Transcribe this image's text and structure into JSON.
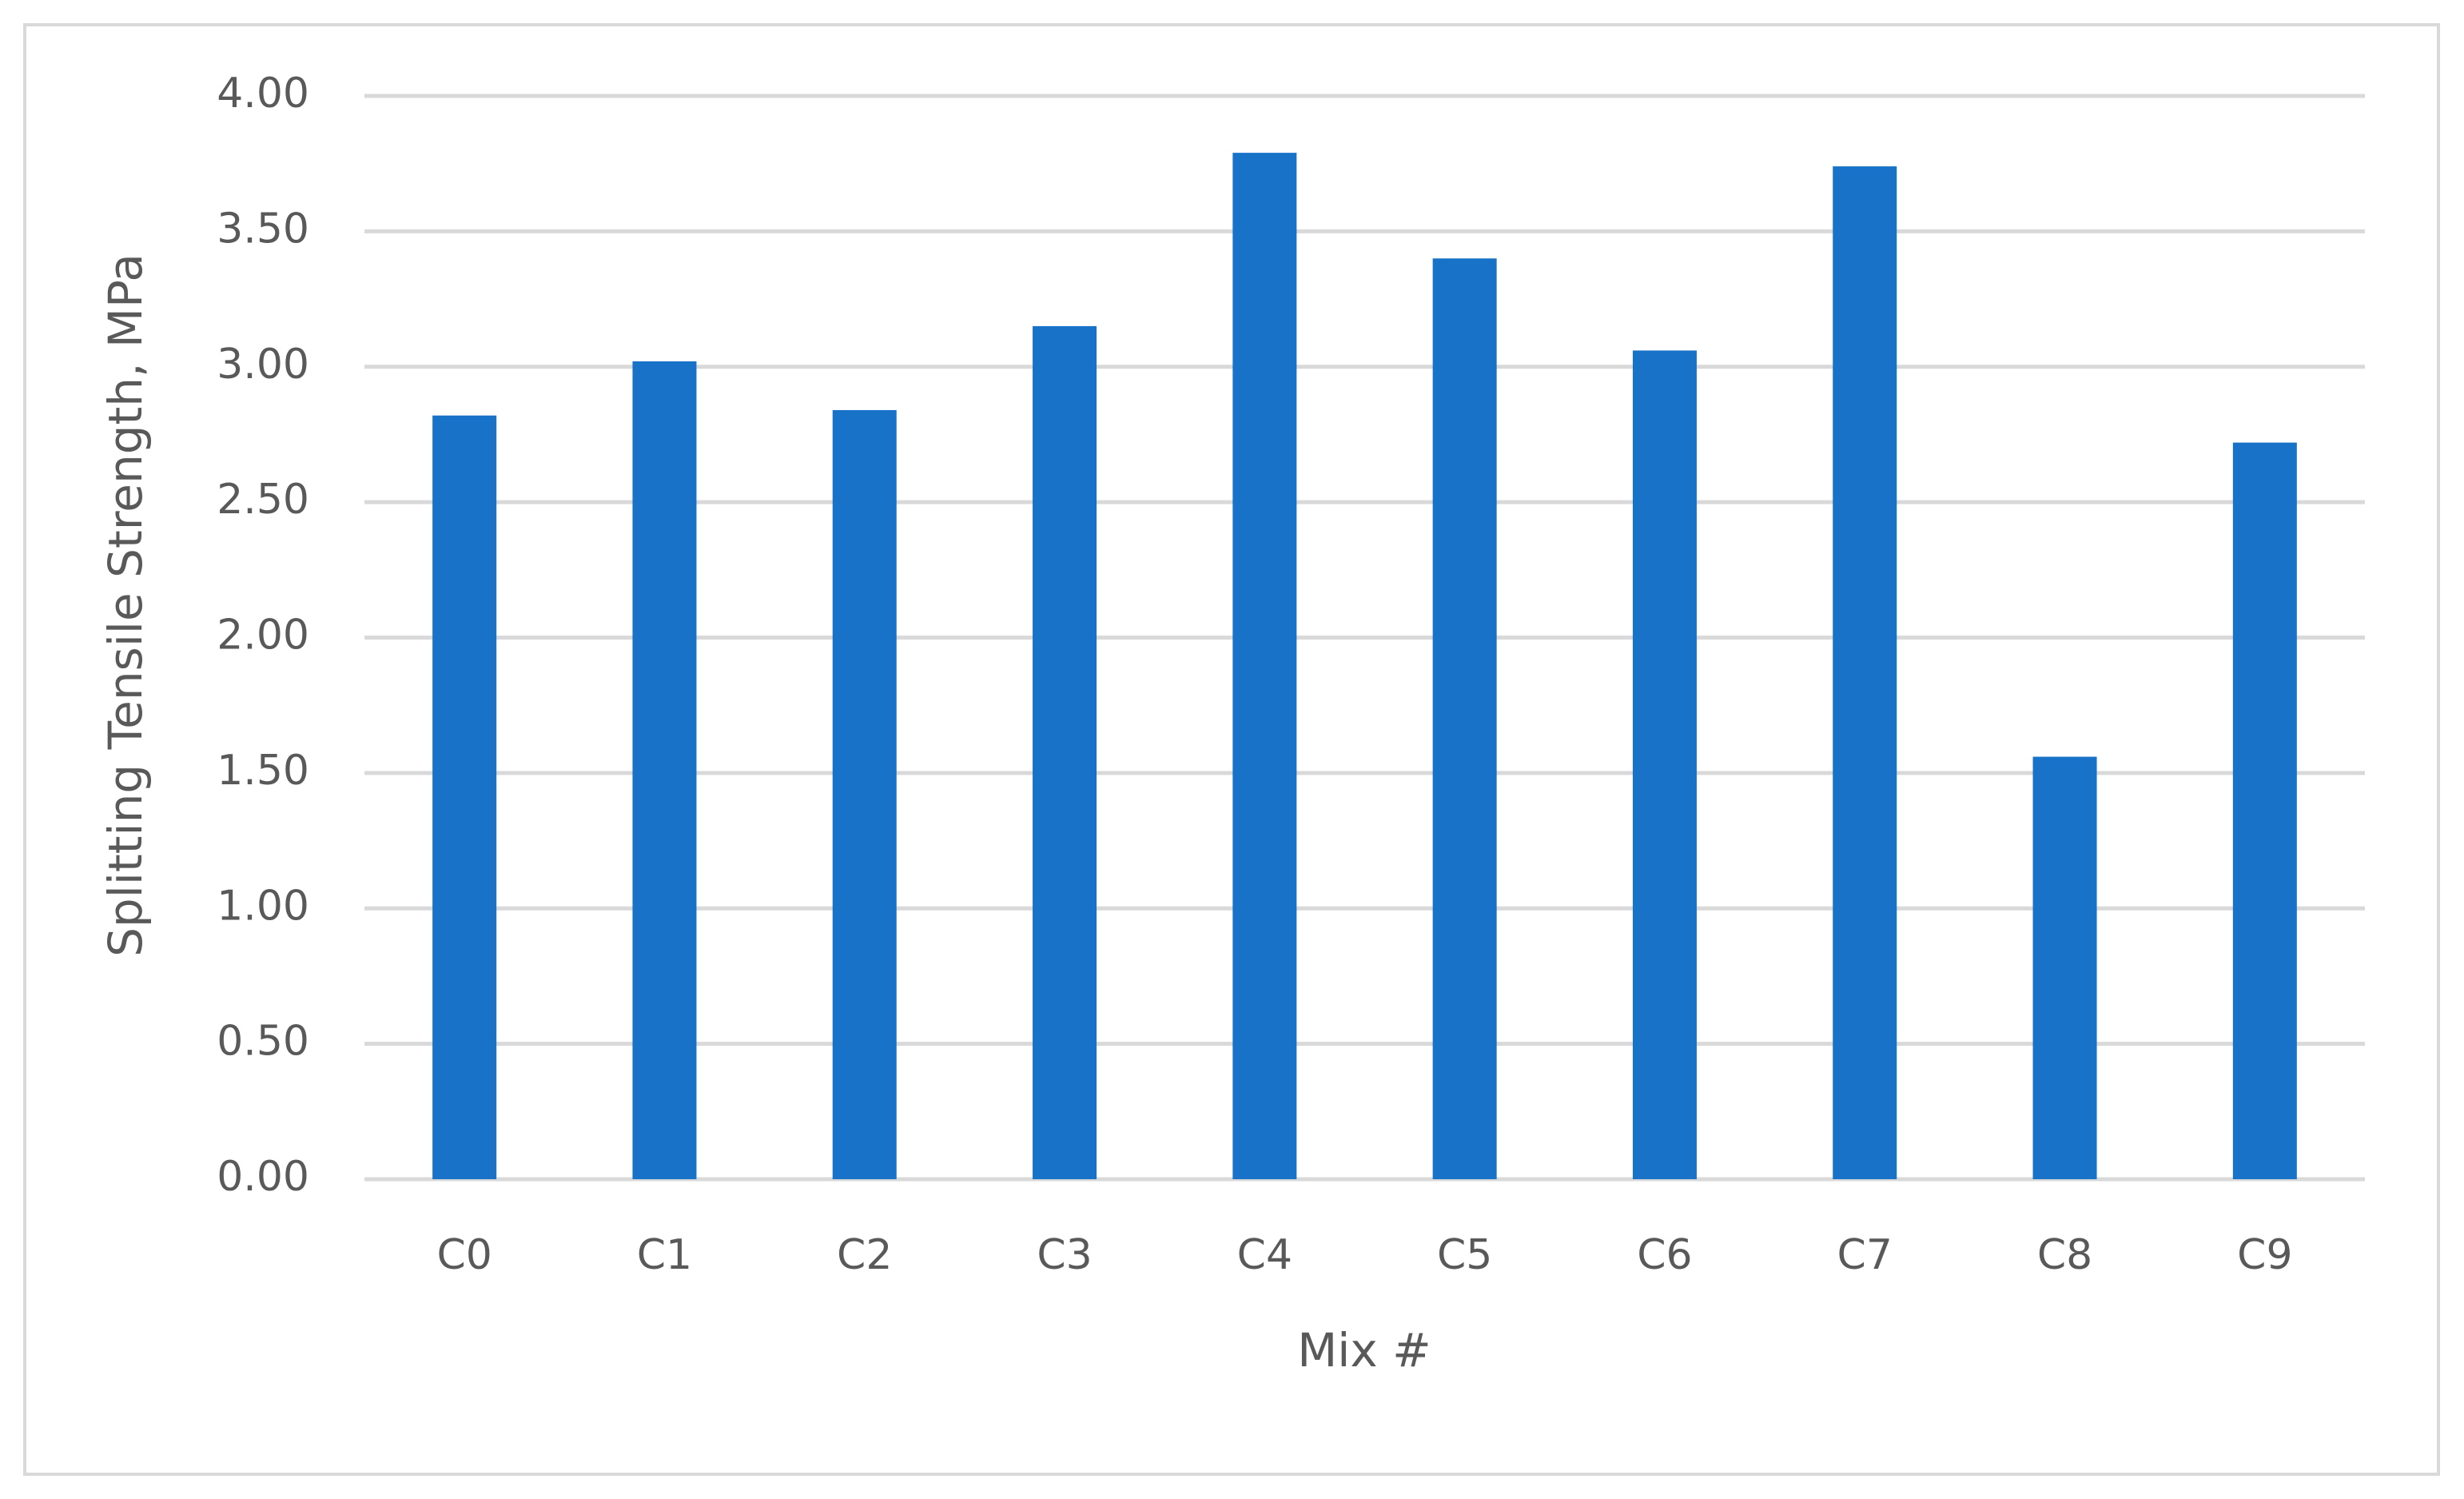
{
  "chart_data": {
    "type": "bar",
    "x_label": "Mix #",
    "y_label": "Splitting Tensile Strength, MPa",
    "categories": [
      "C0",
      "C1",
      "C2",
      "C3",
      "C4",
      "C5",
      "C6",
      "C7",
      "C8",
      "C9"
    ],
    "values": [
      2.82,
      3.02,
      2.84,
      3.15,
      3.79,
      3.4,
      3.06,
      3.74,
      1.56,
      2.72
    ],
    "color": "#1872c8",
    "ylim": [
      0,
      4
    ],
    "yticks": [
      {
        "value": 0,
        "label": "0.00"
      },
      {
        "value": 0.5,
        "label": "0.50"
      },
      {
        "value": 1,
        "label": "1.00"
      },
      {
        "value": 1.5,
        "label": "1.50"
      },
      {
        "value": 2,
        "label": "2.00"
      },
      {
        "value": 2.5,
        "label": "2.50"
      },
      {
        "value": 3,
        "label": "3.00"
      },
      {
        "value": 3.5,
        "label": "3.50"
      },
      {
        "value": 4,
        "label": "4.00"
      }
    ],
    "grid": true
  }
}
